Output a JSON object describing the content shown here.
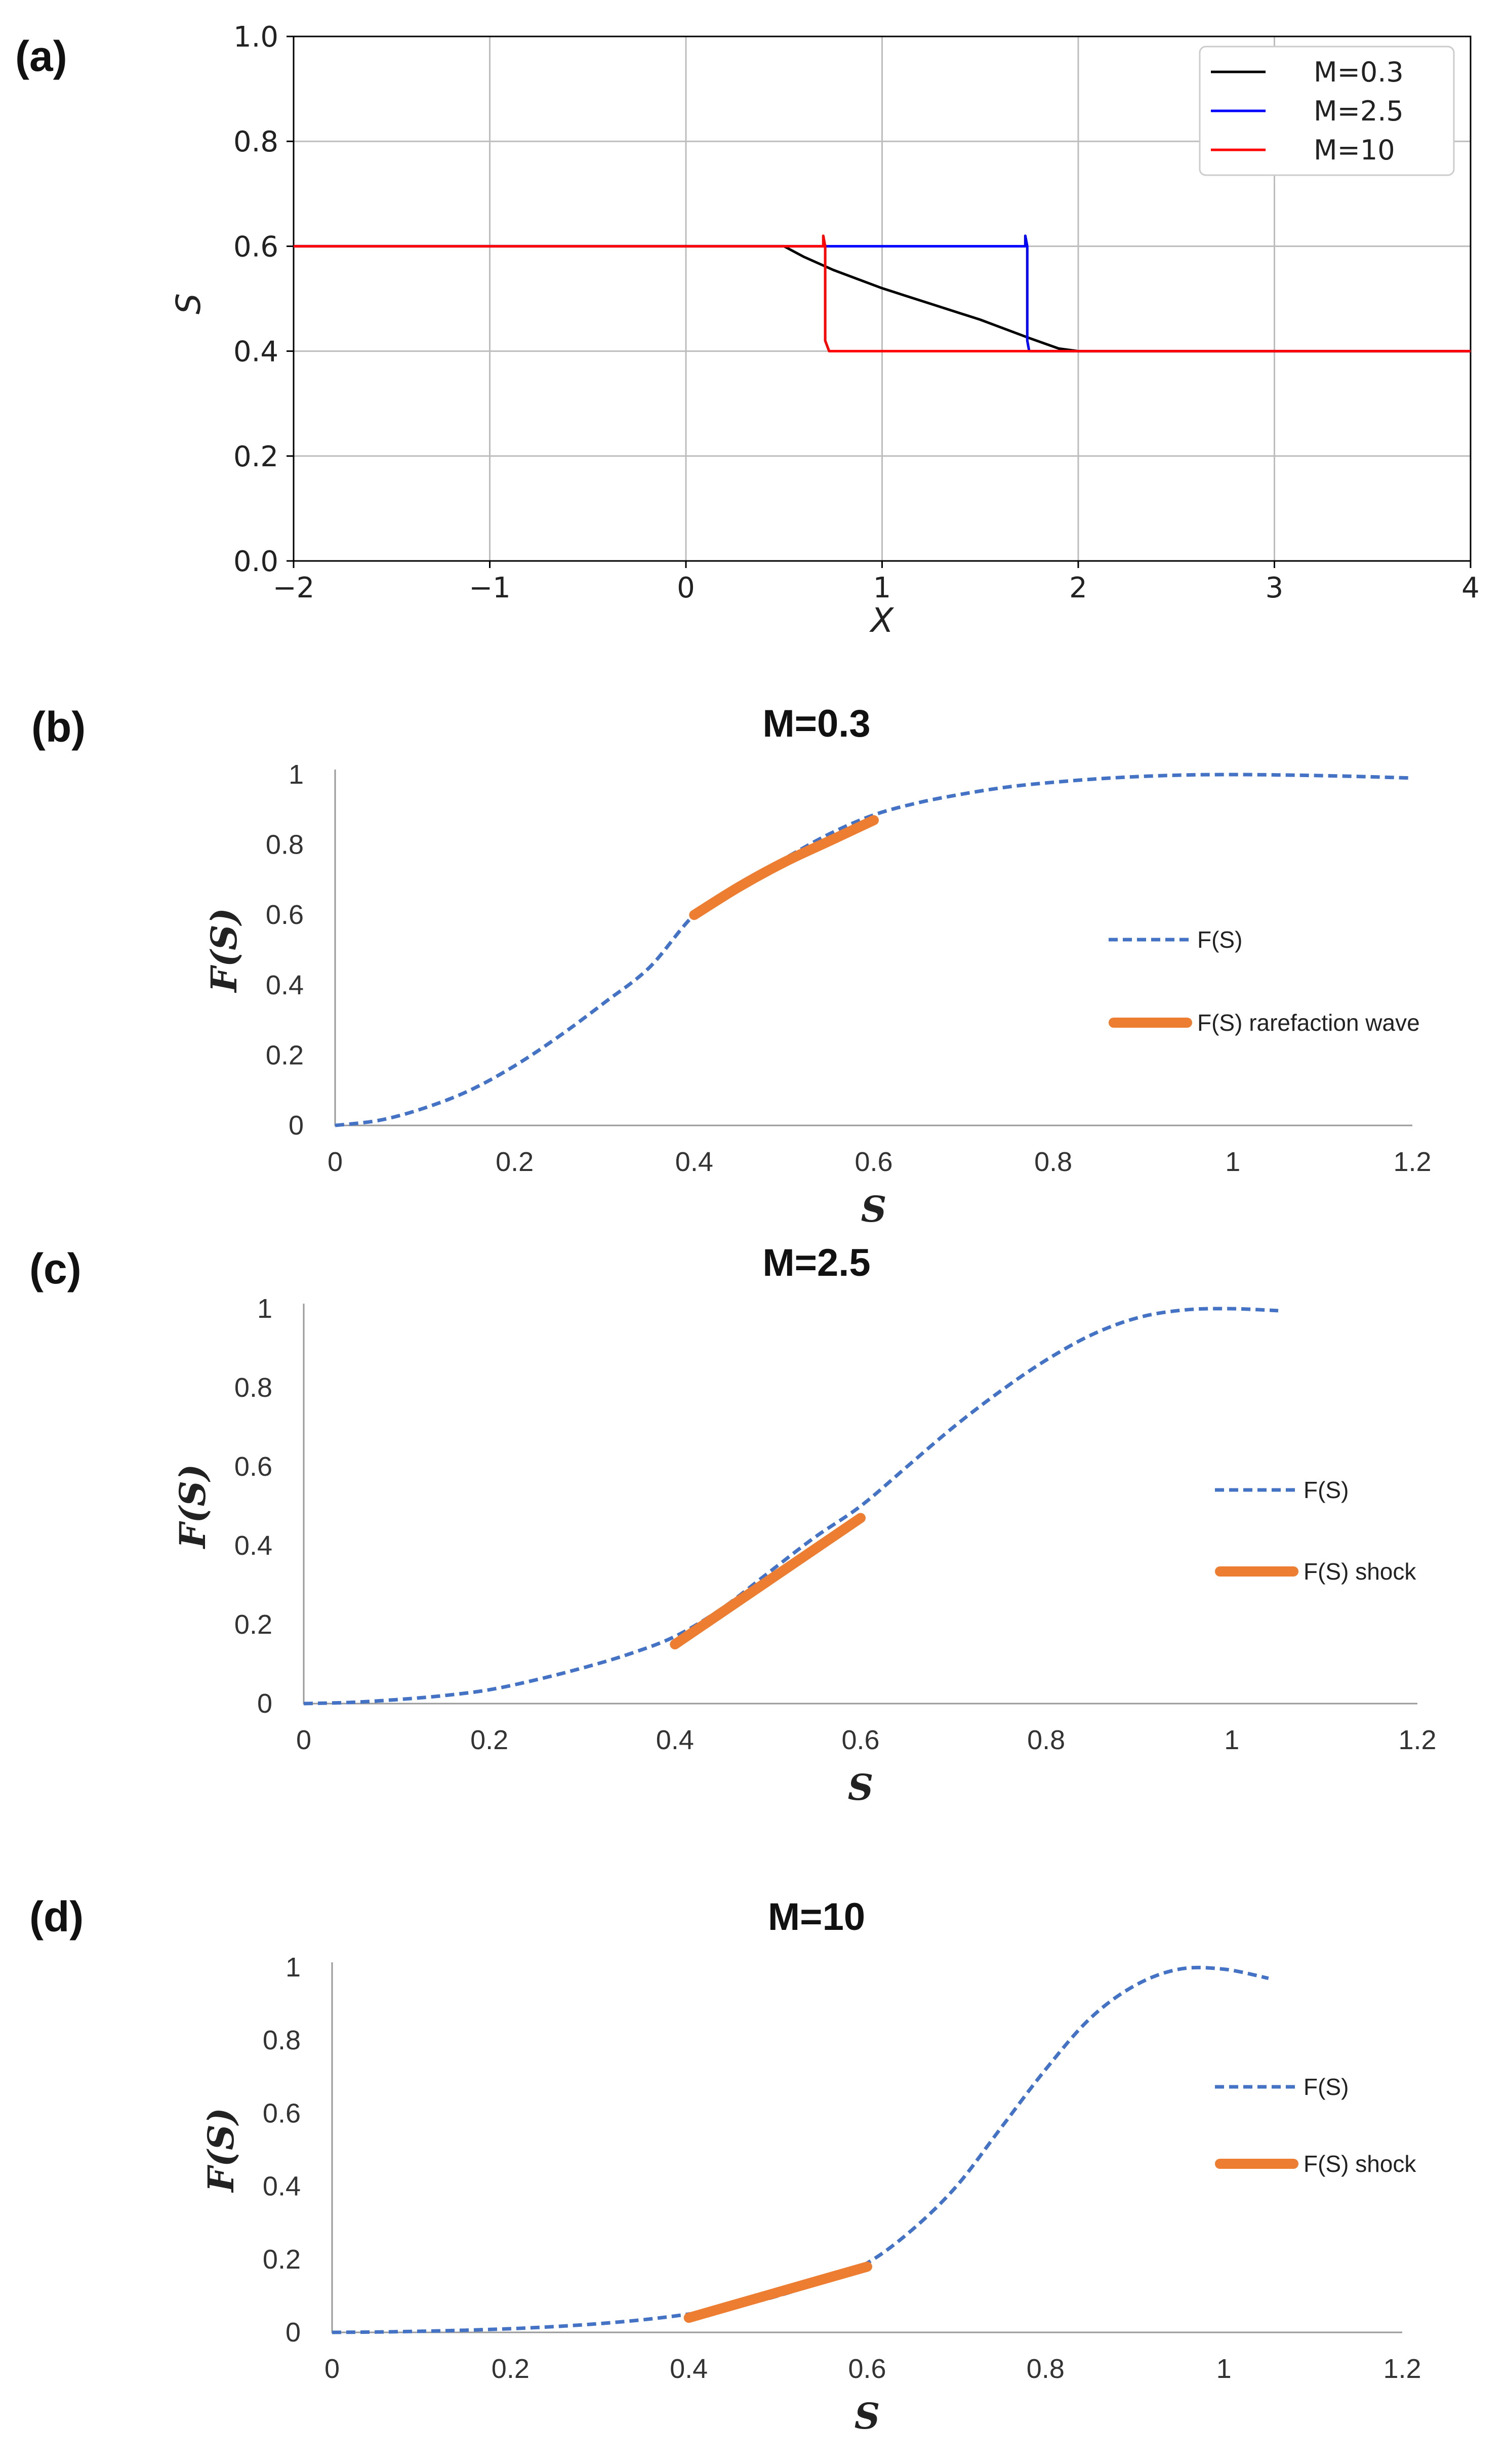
{
  "panel_labels": [
    "(a)",
    "(b)",
    "(c)",
    "(d)"
  ],
  "chart_data": [
    {
      "type": "line",
      "panel": "(a)",
      "title": "",
      "xlabel": "X",
      "ylabel": "S",
      "xlim": [
        -2,
        4
      ],
      "ylim": [
        0,
        1.0
      ],
      "xticks": [
        -2,
        -1,
        0,
        1,
        2,
        3,
        4
      ],
      "xtick_labels": [
        "−2",
        "−1",
        "0",
        "1",
        "2",
        "3",
        "4"
      ],
      "yticks": [
        0,
        0.2,
        0.4,
        0.6,
        0.8,
        1.0
      ],
      "ytick_labels": [
        "0.0",
        "0.2",
        "0.4",
        "0.6",
        "0.8",
        "1.0"
      ],
      "grid": true,
      "legend_position": "top-right",
      "series": [
        {
          "name": "M=0.3",
          "color": "#000000",
          "x": [
            -2,
            0.5,
            0.6,
            0.75,
            1.0,
            1.25,
            1.5,
            1.75,
            1.9,
            2.0,
            4
          ],
          "y": [
            0.6,
            0.6,
            0.58,
            0.555,
            0.52,
            0.49,
            0.46,
            0.425,
            0.405,
            0.4,
            0.4
          ]
        },
        {
          "name": "M=2.5",
          "color": "#0000ff",
          "x": [
            -2,
            1.73,
            1.73,
            1.74,
            1.74,
            1.75,
            4
          ],
          "y": [
            0.6,
            0.6,
            0.62,
            0.6,
            0.42,
            0.4,
            0.4
          ]
        },
        {
          "name": "M=10",
          "color": "#ff0000",
          "x": [
            -2,
            0.7,
            0.7,
            0.71,
            0.71,
            0.73,
            4
          ],
          "y": [
            0.6,
            0.6,
            0.62,
            0.6,
            0.42,
            0.4,
            0.4
          ]
        }
      ]
    },
    {
      "type": "line",
      "panel": "(b)",
      "title": "M=0.3",
      "xlabel": "S",
      "ylabel": "F(S)",
      "xlim": [
        0,
        1.2
      ],
      "ylim": [
        0,
        1
      ],
      "xticks": [
        0,
        0.2,
        0.4,
        0.6,
        0.8,
        1,
        1.2
      ],
      "xtick_labels": [
        "0",
        "0.2",
        "0.4",
        "0.6",
        "0.8",
        "1",
        "1.2"
      ],
      "yticks": [
        0,
        0.2,
        0.4,
        0.6,
        0.8,
        1
      ],
      "ytick_labels": [
        "0",
        "0.2",
        "0.4",
        "0.6",
        "0.8",
        "1"
      ],
      "grid": false,
      "legend_position": "right",
      "series": [
        {
          "name": "F(S)",
          "color": "#4472c4",
          "style": "dashed",
          "x": [
            0,
            0.05,
            0.1,
            0.15,
            0.2,
            0.25,
            0.3,
            0.35,
            0.4,
            0.45,
            0.5,
            0.55,
            0.6,
            0.65,
            0.7,
            0.75,
            0.8,
            0.85,
            0.9,
            0.95,
            1.0,
            1.05,
            1.1,
            1.15,
            1.2
          ],
          "y": [
            0,
            0.015,
            0.05,
            0.1,
            0.17,
            0.255,
            0.35,
            0.45,
            0.6,
            0.69,
            0.76,
            0.83,
            0.885,
            0.92,
            0.945,
            0.965,
            0.978,
            0.988,
            0.995,
            0.999,
            1.0,
            0.999,
            0.997,
            0.994,
            0.99
          ]
        },
        {
          "name": "F(S) rarefaction wave",
          "color": "#ed7d31",
          "style": "thick",
          "x": [
            0.4,
            0.45,
            0.5,
            0.55,
            0.6
          ],
          "y": [
            0.6,
            0.68,
            0.75,
            0.81,
            0.87
          ]
        }
      ]
    },
    {
      "type": "line",
      "panel": "(c)",
      "title": "M=2.5",
      "xlabel": "S",
      "ylabel": "F(S)",
      "xlim": [
        0,
        1.2
      ],
      "ylim": [
        0,
        1
      ],
      "xticks": [
        0,
        0.2,
        0.4,
        0.6,
        0.8,
        1,
        1.2
      ],
      "xtick_labels": [
        "0",
        "0.2",
        "0.4",
        "0.6",
        "0.8",
        "1",
        "1.2"
      ],
      "yticks": [
        0,
        0.2,
        0.4,
        0.6,
        0.8,
        1
      ],
      "ytick_labels": [
        "0",
        "0.2",
        "0.4",
        "0.6",
        "0.8",
        "1"
      ],
      "grid": false,
      "legend_position": "right",
      "series": [
        {
          "name": "F(S)",
          "color": "#4472c4",
          "style": "dashed",
          "x": [
            0,
            0.05,
            0.1,
            0.15,
            0.2,
            0.25,
            0.3,
            0.35,
            0.4,
            0.45,
            0.5,
            0.55,
            0.6,
            0.65,
            0.7,
            0.75,
            0.8,
            0.85,
            0.9,
            0.95,
            1.0,
            1.05
          ],
          "y": [
            0,
            0.003,
            0.01,
            0.02,
            0.035,
            0.06,
            0.09,
            0.125,
            0.17,
            0.24,
            0.33,
            0.42,
            0.5,
            0.6,
            0.7,
            0.79,
            0.87,
            0.935,
            0.978,
            0.997,
            1.0,
            0.995
          ]
        },
        {
          "name": "F(S) shock",
          "color": "#ed7d31",
          "style": "thick",
          "x": [
            0.4,
            0.6
          ],
          "y": [
            0.15,
            0.47
          ]
        }
      ]
    },
    {
      "type": "line",
      "panel": "(d)",
      "title": "M=10",
      "xlabel": "S",
      "ylabel": "F(S)",
      "xlim": [
        0,
        1.2
      ],
      "ylim": [
        0,
        1
      ],
      "xticks": [
        0,
        0.2,
        0.4,
        0.6,
        0.8,
        1,
        1.2
      ],
      "xtick_labels": [
        "0",
        "0.2",
        "0.4",
        "0.6",
        "0.8",
        "1",
        "1.2"
      ],
      "yticks": [
        0,
        0.2,
        0.4,
        0.6,
        0.8,
        1
      ],
      "ytick_labels": [
        "0",
        "0.2",
        "0.4",
        "0.6",
        "0.8",
        "1"
      ],
      "grid": false,
      "legend_position": "right",
      "series": [
        {
          "name": "F(S)",
          "color": "#4472c4",
          "style": "dashed",
          "x": [
            0,
            0.05,
            0.1,
            0.15,
            0.2,
            0.25,
            0.3,
            0.35,
            0.4,
            0.45,
            0.5,
            0.55,
            0.6,
            0.65,
            0.7,
            0.75,
            0.8,
            0.85,
            0.9,
            0.95,
            1.0,
            1.05
          ],
          "y": [
            0,
            0.001,
            0.003,
            0.006,
            0.01,
            0.016,
            0.024,
            0.035,
            0.05,
            0.07,
            0.1,
            0.14,
            0.19,
            0.28,
            0.4,
            0.56,
            0.72,
            0.86,
            0.95,
            0.995,
            0.995,
            0.97
          ]
        },
        {
          "name": "F(S) shock",
          "color": "#ed7d31",
          "style": "thick",
          "x": [
            0.4,
            0.6
          ],
          "y": [
            0.04,
            0.18
          ]
        }
      ]
    }
  ]
}
